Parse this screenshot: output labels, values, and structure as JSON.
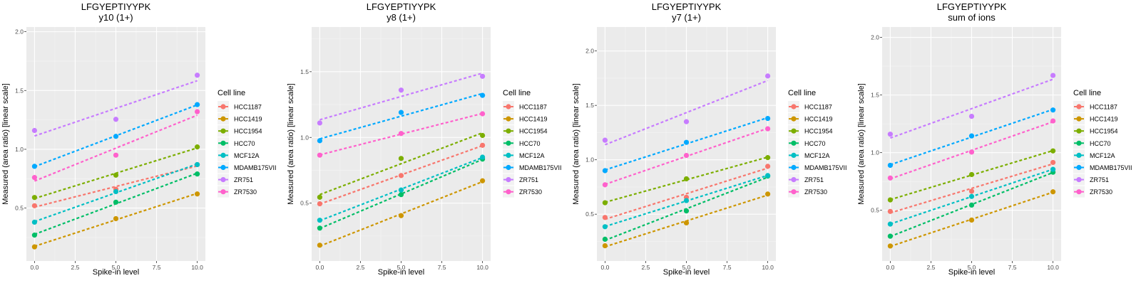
{
  "chart_data": [
    {
      "type": "scatter",
      "title": "LFGYEPTIYYPK",
      "subtitle": "y10 (1+)",
      "xlabel": "Spike-in level",
      "ylabel": "Measured (area ratio) [linear scale]",
      "x": [
        0,
        5,
        10
      ],
      "xlim": [
        -0.5,
        10.5
      ],
      "ylim": [
        0.05,
        2.04
      ],
      "xticks": [
        0,
        2.5,
        5,
        7.5,
        10
      ],
      "xtick_labels": [
        "0.0",
        "2.5",
        "5.0",
        "7.5",
        "10.0"
      ],
      "yticks": [
        0.5,
        1.0,
        1.5,
        2.0
      ],
      "ytick_labels": [
        "0.5",
        "1.0",
        "1.5",
        "2.0"
      ],
      "grid": true,
      "trend": "linear fit, dashed",
      "series": [
        {
          "name": "HCC1187",
          "values": [
            0.52,
            0.66,
            0.87
          ]
        },
        {
          "name": "HCC1419",
          "values": [
            0.17,
            0.41,
            0.62
          ]
        },
        {
          "name": "HCC1954",
          "values": [
            0.59,
            0.78,
            1.02
          ]
        },
        {
          "name": "HCC70",
          "values": [
            0.27,
            0.55,
            0.79
          ]
        },
        {
          "name": "MCF12A",
          "values": [
            0.38,
            0.64,
            0.87
          ]
        },
        {
          "name": "MDAMB175VII",
          "values": [
            0.855,
            1.11,
            1.38
          ]
        },
        {
          "name": "ZR751",
          "values": [
            1.16,
            1.255,
            1.63
          ]
        },
        {
          "name": "ZR7530",
          "values": [
            0.76,
            0.95,
            1.32
          ]
        }
      ]
    },
    {
      "type": "scatter",
      "title": "LFGYEPTIYYPK",
      "subtitle": "y8 (1+)",
      "xlabel": "Spike-in level",
      "ylabel": "Measured (area ratio) [linear scale]",
      "x": [
        0,
        5,
        10
      ],
      "xlim": [
        -0.5,
        10.5
      ],
      "ylim": [
        0.06,
        1.84
      ],
      "xticks": [
        0,
        2.5,
        5,
        7.5,
        10
      ],
      "xtick_labels": [
        "0.0",
        "2.5",
        "5.0",
        "7.5",
        "10.0"
      ],
      "yticks": [
        0.5,
        1.0,
        1.5
      ],
      "ytick_labels": [
        "0.5",
        "1.0",
        "1.5"
      ],
      "grid": true,
      "trend": "linear fit, dashed",
      "series": [
        {
          "name": "HCC1187",
          "values": [
            0.495,
            0.71,
            0.94
          ]
        },
        {
          "name": "HCC1419",
          "values": [
            0.18,
            0.405,
            0.67
          ]
        },
        {
          "name": "HCC1954",
          "values": [
            0.545,
            0.84,
            1.015
          ]
        },
        {
          "name": "HCC70",
          "values": [
            0.31,
            0.565,
            0.835
          ]
        },
        {
          "name": "MCF12A",
          "values": [
            0.37,
            0.6,
            0.85
          ]
        },
        {
          "name": "MDAMB175VII",
          "values": [
            0.975,
            1.19,
            1.32
          ]
        },
        {
          "name": "ZR751",
          "values": [
            1.11,
            1.36,
            1.465
          ]
        },
        {
          "name": "ZR7530",
          "values": [
            0.865,
            1.03,
            1.18
          ]
        }
      ]
    },
    {
      "type": "scatter",
      "title": "LFGYEPTIYYPK",
      "subtitle": "y7 (1+)",
      "xlabel": "Spike-in level",
      "ylabel": "Measured (area ratio) [linear scale]",
      "x": [
        0,
        5,
        10
      ],
      "xlim": [
        -0.5,
        10.5
      ],
      "ylim": [
        0.07,
        2.22
      ],
      "xticks": [
        0,
        2.5,
        5,
        7.5,
        10
      ],
      "xtick_labels": [
        "0.0",
        "2.5",
        "5.0",
        "7.5",
        "10.0"
      ],
      "yticks": [
        0.5,
        1.0,
        1.5,
        2.0
      ],
      "ytick_labels": [
        "0.5",
        "1.0",
        "1.5",
        "2.0"
      ],
      "grid": true,
      "trend": "linear fit, dashed",
      "series": [
        {
          "name": "HCC1187",
          "values": [
            0.47,
            0.655,
            0.94
          ]
        },
        {
          "name": "HCC1419",
          "values": [
            0.21,
            0.42,
            0.685
          ]
        },
        {
          "name": "HCC1954",
          "values": [
            0.605,
            0.825,
            1.02
          ]
        },
        {
          "name": "HCC70",
          "values": [
            0.27,
            0.53,
            0.85
          ]
        },
        {
          "name": "MCF12A",
          "values": [
            0.385,
            0.625,
            0.855
          ]
        },
        {
          "name": "MDAMB175VII",
          "values": [
            0.9,
            1.16,
            1.38
          ]
        },
        {
          "name": "ZR751",
          "values": [
            1.18,
            1.35,
            1.77
          ]
        },
        {
          "name": "ZR7530",
          "values": [
            0.77,
            1.04,
            1.285
          ]
        }
      ]
    },
    {
      "type": "scatter",
      "title": "LFGYEPTIYYPK",
      "subtitle": "sum of ions",
      "xlabel": "Spike-in level",
      "ylabel": "Measured (area ratio) [linear scale]",
      "x": [
        0,
        5,
        10
      ],
      "xlim": [
        -0.5,
        10.5
      ],
      "ylim": [
        0.06,
        2.09
      ],
      "xticks": [
        0,
        2.5,
        5,
        7.5,
        10
      ],
      "xtick_labels": [
        "0.0",
        "2.5",
        "5.0",
        "7.5",
        "10.0"
      ],
      "yticks": [
        0.5,
        1.0,
        1.5,
        2.0
      ],
      "ytick_labels": [
        "0.5",
        "1.0",
        "1.5",
        "2.0"
      ],
      "grid": true,
      "trend": "linear fit, dashed",
      "series": [
        {
          "name": "HCC1187",
          "values": [
            0.49,
            0.665,
            0.915
          ]
        },
        {
          "name": "HCC1419",
          "values": [
            0.19,
            0.415,
            0.66
          ]
        },
        {
          "name": "HCC1954",
          "values": [
            0.59,
            0.81,
            1.015
          ]
        },
        {
          "name": "HCC70",
          "values": [
            0.275,
            0.545,
            0.83
          ]
        },
        {
          "name": "MCF12A",
          "values": [
            0.38,
            0.62,
            0.855
          ]
        },
        {
          "name": "MDAMB175VII",
          "values": [
            0.89,
            1.145,
            1.37
          ]
        },
        {
          "name": "ZR751",
          "values": [
            1.16,
            1.315,
            1.67
          ]
        },
        {
          "name": "ZR7530",
          "values": [
            0.78,
            1.005,
            1.275
          ]
        }
      ]
    }
  ],
  "legend": {
    "title": "Cell line",
    "placement": "right",
    "items": [
      "HCC1187",
      "HCC1419",
      "HCC1954",
      "HCC70",
      "MCF12A",
      "MDAMB175VII",
      "ZR751",
      "ZR7530"
    ]
  },
  "colors": [
    "#F8766D",
    "#CD9600",
    "#7CAE00",
    "#00BE67",
    "#00BFC4",
    "#00A9FF",
    "#C77CFF",
    "#FF61CC"
  ]
}
